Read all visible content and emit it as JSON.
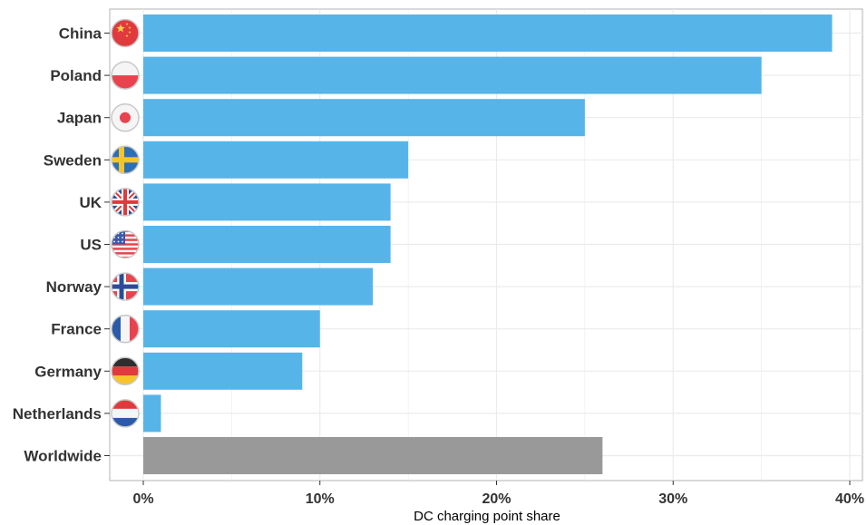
{
  "chart_data": {
    "type": "bar",
    "orientation": "horizontal",
    "title": "",
    "xlabel": "DC charging point share",
    "ylabel": "",
    "xlim": [
      0,
      40
    ],
    "x_ticks": [
      0,
      10,
      20,
      30,
      40
    ],
    "x_tick_labels": [
      "0%",
      "10%",
      "20%",
      "30%",
      "40%"
    ],
    "grid": true,
    "categories": [
      "China",
      "Poland",
      "Japan",
      "Sweden",
      "UK",
      "US",
      "Norway",
      "France",
      "Germany",
      "Netherlands",
      "Worldwide"
    ],
    "values": [
      39,
      35,
      25,
      15,
      14,
      14,
      13,
      10,
      9,
      1,
      26
    ],
    "flag_icons": [
      "china-flag-icon",
      "poland-flag-icon",
      "japan-flag-icon",
      "sweden-flag-icon",
      "uk-flag-icon",
      "us-flag-icon",
      "norway-flag-icon",
      "france-flag-icon",
      "germany-flag-icon",
      "netherlands-flag-icon",
      ""
    ],
    "colors": {
      "country_bar": "#56b4e9",
      "worldwide_bar": "#999999",
      "grid": "#ebebeb",
      "axis_text": "#333333",
      "panel_border": "#b3b3b3"
    }
  }
}
